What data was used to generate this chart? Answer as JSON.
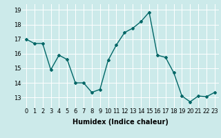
{
  "x": [
    0,
    1,
    2,
    3,
    4,
    5,
    6,
    7,
    8,
    9,
    10,
    11,
    12,
    13,
    14,
    15,
    16,
    17,
    18,
    19,
    20,
    21,
    22,
    23
  ],
  "y": [
    17.0,
    16.7,
    16.7,
    14.9,
    15.9,
    15.6,
    14.0,
    14.0,
    13.35,
    13.55,
    15.55,
    16.6,
    17.45,
    17.75,
    18.2,
    18.85,
    15.9,
    15.75,
    14.7,
    13.1,
    12.7,
    13.1,
    13.05,
    13.35
  ],
  "line_color": "#006666",
  "marker": "D",
  "marker_size": 2.0,
  "bg_color": "#cceaea",
  "grid_color": "#ffffff",
  "xlabel": "Humidex (Indice chaleur)",
  "xlim": [
    -0.5,
    23.5
  ],
  "ylim": [
    12.3,
    19.4
  ],
  "yticks": [
    13,
    14,
    15,
    16,
    17,
    18,
    19
  ],
  "xticks": [
    0,
    1,
    2,
    3,
    4,
    5,
    6,
    7,
    8,
    9,
    10,
    11,
    12,
    13,
    14,
    15,
    16,
    17,
    18,
    19,
    20,
    21,
    22,
    23
  ],
  "xlabel_fontsize": 7,
  "tick_fontsize": 6,
  "linewidth": 1.0
}
